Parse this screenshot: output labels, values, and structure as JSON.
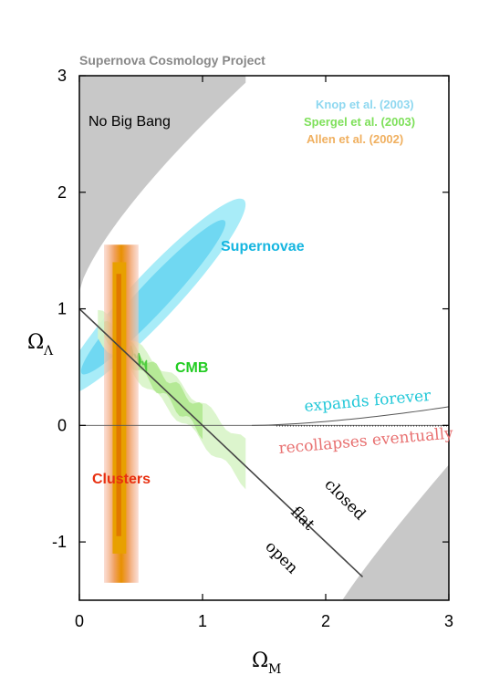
{
  "chart_data": {
    "type": "scatter",
    "title": "Supernova Cosmology Project",
    "xlabel": "Ω",
    "xlabel_sub": "M",
    "ylabel": "Ω",
    "ylabel_sub": "Λ",
    "xlim": [
      0,
      3
    ],
    "ylim": [
      -1.5,
      3
    ],
    "xticks": [
      0,
      1,
      2,
      3
    ],
    "yticks": [
      -1,
      0,
      1,
      2,
      3
    ],
    "xtick_labels": [
      "0",
      "1",
      "2",
      "3"
    ],
    "ytick_labels": [
      "-1",
      "0",
      "1",
      "2",
      "3"
    ],
    "legend": [
      {
        "name": "Knop et al. (2003)",
        "color": "#8fd8f0"
      },
      {
        "name": "Spergel et al.  (2003)",
        "color": "#7ee05a"
      },
      {
        "name": "Allen et al.  (2002)",
        "color": "#f0b060"
      }
    ],
    "regions": [
      {
        "label": "No Big Bang",
        "color": "#c8c8c8"
      },
      {
        "label": "Supernovae",
        "color": "#16b6e0",
        "center": [
          0.6,
          1.1
        ],
        "angle_deg": 47,
        "semi_axes_1sigma": [
          0.85,
          0.13
        ],
        "semi_axes_2sigma": [
          1.08,
          0.2
        ]
      },
      {
        "label": "CMB",
        "color": "#22cc22",
        "center": [
          0.8,
          0.45
        ]
      },
      {
        "label": "Clusters",
        "color": "#e83010",
        "center": [
          0.3,
          -0.15
        ]
      }
    ],
    "lines": [
      {
        "name": "flat",
        "x": [
          0,
          2.3
        ],
        "y": [
          1,
          -1.3
        ]
      },
      {
        "name": "loitering boundary",
        "x": [
          1.4,
          3
        ],
        "y": [
          0,
          0.16
        ]
      }
    ],
    "annotations": {
      "expands": "expands forever",
      "recollapses": "recollapses eventually",
      "closed": "closed",
      "flat": "flat",
      "open": "open"
    },
    "colors": {
      "gray_region": "#c8c8c8",
      "cyan_text": "#16b6e0",
      "green_text": "#22cc22",
      "red_text": "#e83010",
      "title_gray": "#888888",
      "expand_color": "#22c8d8",
      "recollapse_color": "#e87070"
    }
  }
}
